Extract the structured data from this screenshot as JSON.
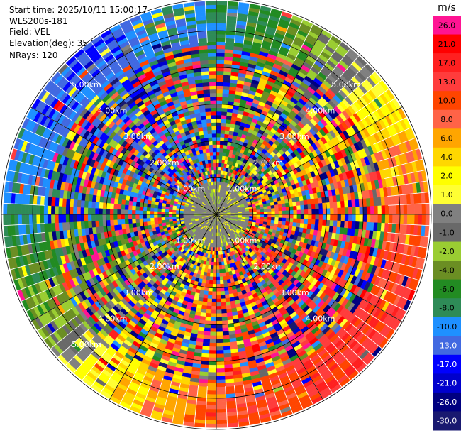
{
  "info": {
    "start_time": "Start time: 2025/10/11 15:00:17",
    "instrument": "WLS200s-181",
    "field": "Field: VEL",
    "elevation": "Elevation(deg): 35.00",
    "nrays": "NRays: 120"
  },
  "chart_data": {
    "type": "ppi",
    "field": "VEL",
    "unit": "m/s",
    "n_rays": 120,
    "elevation_deg": 35.0,
    "max_range_km": 5.85,
    "gate_km": 0.1,
    "range_rings_km": [
      1.0,
      2.0,
      3.0,
      4.0,
      5.0,
      5.85
    ],
    "spokes_deg": [
      0,
      30,
      60,
      90,
      120,
      150,
      180,
      210,
      240,
      270,
      300,
      330
    ],
    "range_labels": [
      {
        "text": "1.00km",
        "az": 45,
        "r": 1.0
      },
      {
        "text": "1.00km",
        "az": 135,
        "r": 1.0
      },
      {
        "text": "1.00km",
        "az": 225,
        "r": 1.0
      },
      {
        "text": "1.00km",
        "az": 315,
        "r": 1.0
      },
      {
        "text": "2.00km",
        "az": 45,
        "r": 2.0
      },
      {
        "text": "2.00km",
        "az": 135,
        "r": 2.0
      },
      {
        "text": "2.00km",
        "az": 225,
        "r": 2.0
      },
      {
        "text": "2.00km",
        "az": 315,
        "r": 2.0
      },
      {
        "text": "3.00km",
        "az": 45,
        "r": 3.0
      },
      {
        "text": "3.00km",
        "az": 135,
        "r": 3.0
      },
      {
        "text": "3.00km",
        "az": 225,
        "r": 3.0
      },
      {
        "text": "3.00km",
        "az": 315,
        "r": 3.0
      },
      {
        "text": "4.00km",
        "az": 45,
        "r": 4.0
      },
      {
        "text": "4.00km",
        "az": 135,
        "r": 4.0
      },
      {
        "text": "4.00km",
        "az": 225,
        "r": 4.0
      },
      {
        "text": "4.00km",
        "az": 315,
        "r": 4.0
      },
      {
        "text": "5.00km",
        "az": 45,
        "r": 5.0
      },
      {
        "text": "5.00km",
        "az": 225,
        "r": 5.0
      },
      {
        "text": "5.00km",
        "az": 315,
        "r": 5.0
      }
    ],
    "colorbar": {
      "title": "m/s",
      "levels": [
        {
          "label": "26.0",
          "color": "#ff1493"
        },
        {
          "label": "21.0",
          "color": "#ff0000"
        },
        {
          "label": "17.0",
          "color": "#ff2020"
        },
        {
          "label": "13.0",
          "color": "#ff3c3c"
        },
        {
          "label": "10.0",
          "color": "#ff4500"
        },
        {
          "label": "8.0",
          "color": "#ff6347"
        },
        {
          "label": "6.0",
          "color": "#ffa500"
        },
        {
          "label": "4.0",
          "color": "#ffd700"
        },
        {
          "label": "2.0",
          "color": "#ffff00"
        },
        {
          "label": "1.0",
          "color": "#ffff33"
        },
        {
          "label": "0.0",
          "color": "#808080"
        },
        {
          "label": "-1.0",
          "color": "#696969"
        },
        {
          "label": "-2.0",
          "color": "#9acd32"
        },
        {
          "label": "-4.0",
          "color": "#6b8e23"
        },
        {
          "label": "-6.0",
          "color": "#228b22"
        },
        {
          "label": "-8.0",
          "color": "#2e8b57"
        },
        {
          "label": "-10.0",
          "color": "#1e90ff"
        },
        {
          "label": "-13.0",
          "color": "#4169e1"
        },
        {
          "label": "-17.0",
          "color": "#0000ff"
        },
        {
          "label": "-21.0",
          "color": "#0000cd"
        },
        {
          "label": "-26.0",
          "color": "#000080"
        },
        {
          "label": "-30.0",
          "color": "#191970"
        }
      ]
    }
  }
}
